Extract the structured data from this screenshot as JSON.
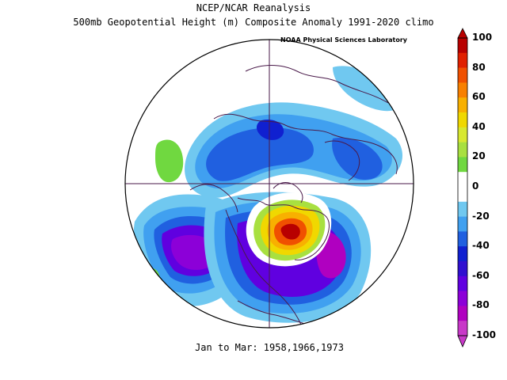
{
  "title_line1": "NCEP/NCAR Reanalysis",
  "title_line2": "500mb Geopotential Height (m) Composite Anomaly 1991-2020 climo",
  "credit": "NOAA Physical Sciences Laboratory",
  "footer": "Jan to Mar: 1958,1966,1973",
  "colorbar": {
    "labels": [
      "100",
      "80",
      "60",
      "40",
      "20",
      "0",
      "-20",
      "-40",
      "-60",
      "-80",
      "-100"
    ],
    "colors": [
      "#b80000",
      "#e02000",
      "#f05000",
      "#f88000",
      "#f8b000",
      "#f0d800",
      "#d8e830",
      "#a8e040",
      "#70d840",
      "#ffffff",
      "#ffffff",
      "#70c8f0",
      "#40a0f0",
      "#2060e0",
      "#1020d0",
      "#3010d0",
      "#6000e0",
      "#8c00d8",
      "#b000c0",
      "#c838c8"
    ]
  },
  "map": {
    "projection": "north-polar-stereographic",
    "anomaly_features": [
      {
        "name": "positive anomaly over Hudson Bay / Great Lakes",
        "peak_m": 100
      },
      {
        "name": "negative anomaly over western North Atlantic",
        "peak_m": -80
      },
      {
        "name": "negative anomaly over Gulf of Alaska / NE Pacific",
        "peak_m": -80
      },
      {
        "name": "negative anomaly over northern Eurasia",
        "peak_m": -60
      },
      {
        "name": "positive anomaly over central Pacific",
        "peak_m": 20
      }
    ]
  }
}
